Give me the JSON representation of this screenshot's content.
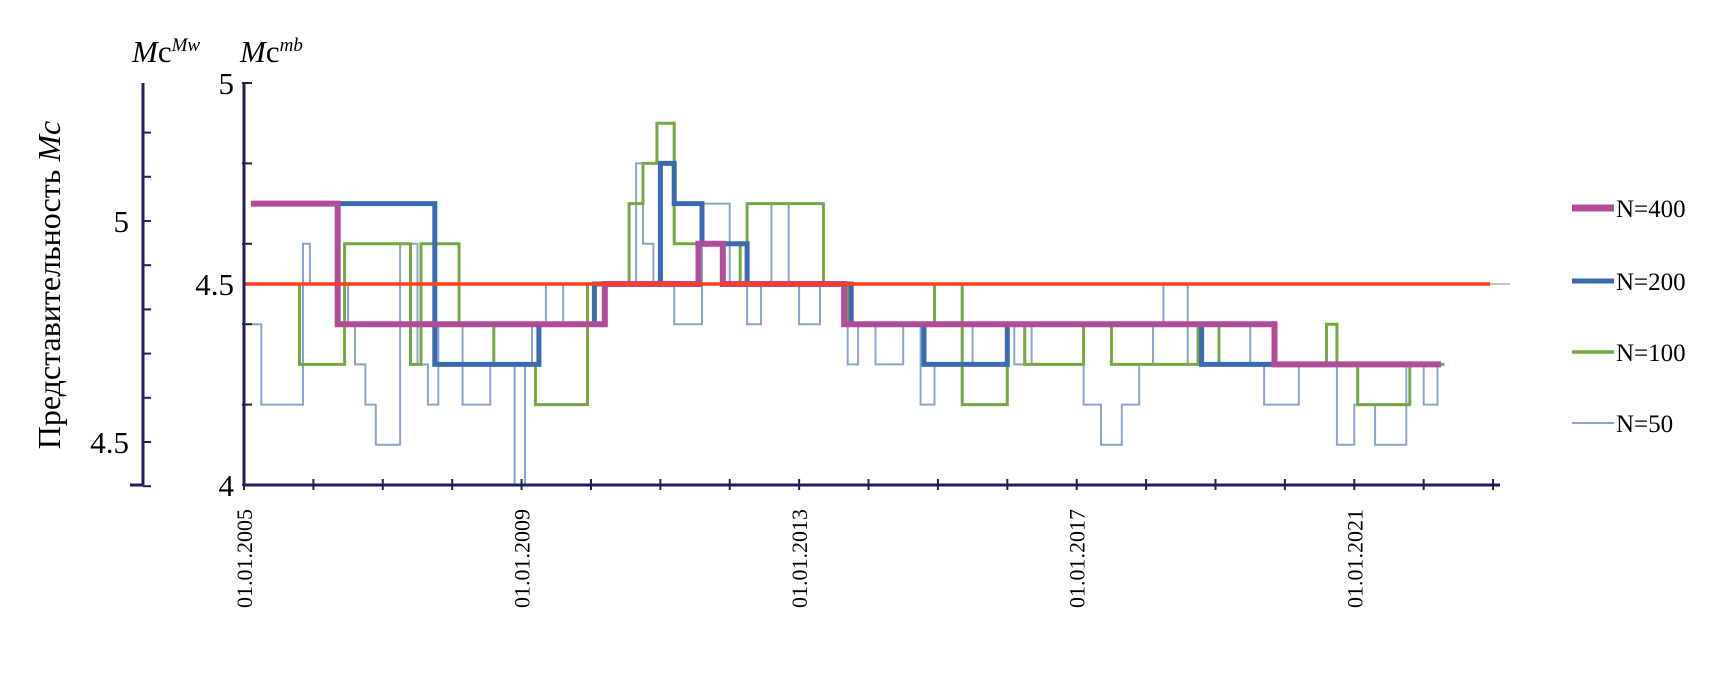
{
  "chart_data": {
    "type": "line",
    "step": true,
    "ylabel_main": "Представительность",
    "ylabel_sym": "Mc",
    "axis_heads": {
      "left_base": "Mc",
      "left_sup": "Mw",
      "right_base": "Mc",
      "right_sup": "mb"
    },
    "left_axis": {
      "ticks": [
        "5",
        "4.5"
      ]
    },
    "inner_axis": {
      "ylim": [
        4,
        5
      ],
      "ticks": [
        "5",
        "4.5",
        "4"
      ]
    },
    "xlim": [
      2005.0,
      2023.1
    ],
    "x_ticks": [
      "01.01.2005",
      "01.01.2009",
      "01.01.2013",
      "01.01.2017",
      "01.01.2021"
    ],
    "x_tick_values": [
      2005.0,
      2009.0,
      2013.0,
      2017.0,
      2021.0
    ],
    "reference_line": {
      "y": 4.5,
      "color": "#ff3d1a"
    },
    "series": [
      {
        "name": "N=400",
        "color": "#b04c9a",
        "x": [
          2005.1,
          2006.35,
          2010.2,
          2011.55,
          2011.9,
          2013.65,
          2019.85,
          2022.25
        ],
        "y": [
          4.7,
          4.4,
          4.5,
          4.6,
          4.5,
          4.4,
          4.3,
          4.3
        ]
      },
      {
        "name": "N=200",
        "color": "#3a6bb0",
        "x": [
          2005.1,
          2007.3,
          2007.75,
          2009.25,
          2010.05,
          2011.0,
          2011.2,
          2011.6,
          2012.25,
          2013.75,
          2014.8,
          2016.0,
          2018.8,
          2019.7,
          2022.25
        ],
        "y": [
          4.7,
          4.7,
          4.3,
          4.4,
          4.5,
          4.8,
          4.7,
          4.6,
          4.5,
          4.4,
          4.3,
          4.4,
          4.3,
          4.3,
          4.3
        ]
      },
      {
        "name": "N=100",
        "color": "#73a845",
        "x": [
          2005.2,
          2005.8,
          2006.05,
          2006.45,
          2007.4,
          2007.55,
          2008.1,
          2008.6,
          2009.2,
          2009.95,
          2010.55,
          2010.75,
          2010.95,
          2011.2,
          2012.15,
          2012.25,
          2012.6,
          2013.35,
          2013.7,
          2014.4,
          2014.95,
          2015.35,
          2015.5,
          2016.0,
          2016.25,
          2016.9,
          2017.1,
          2017.5,
          2017.85,
          2018.75,
          2019.05,
          2019.65,
          2020.6,
          2020.75,
          2021.05,
          2021.8,
          2022.3
        ],
        "y": [
          4.5,
          4.3,
          4.3,
          4.6,
          4.3,
          4.6,
          4.4,
          4.3,
          4.2,
          4.5,
          4.7,
          4.8,
          4.9,
          4.6,
          4.5,
          4.7,
          4.7,
          4.5,
          4.4,
          4.4,
          4.5,
          4.2,
          4.2,
          4.4,
          4.3,
          4.3,
          4.4,
          4.3,
          4.3,
          4.4,
          4.3,
          4.3,
          4.4,
          4.3,
          4.2,
          4.3,
          4.3
        ]
      }
    ],
    "series_extra": [
      {
        "name": "N=50",
        "color": "#8aa3cf"
      }
    ]
  }
}
